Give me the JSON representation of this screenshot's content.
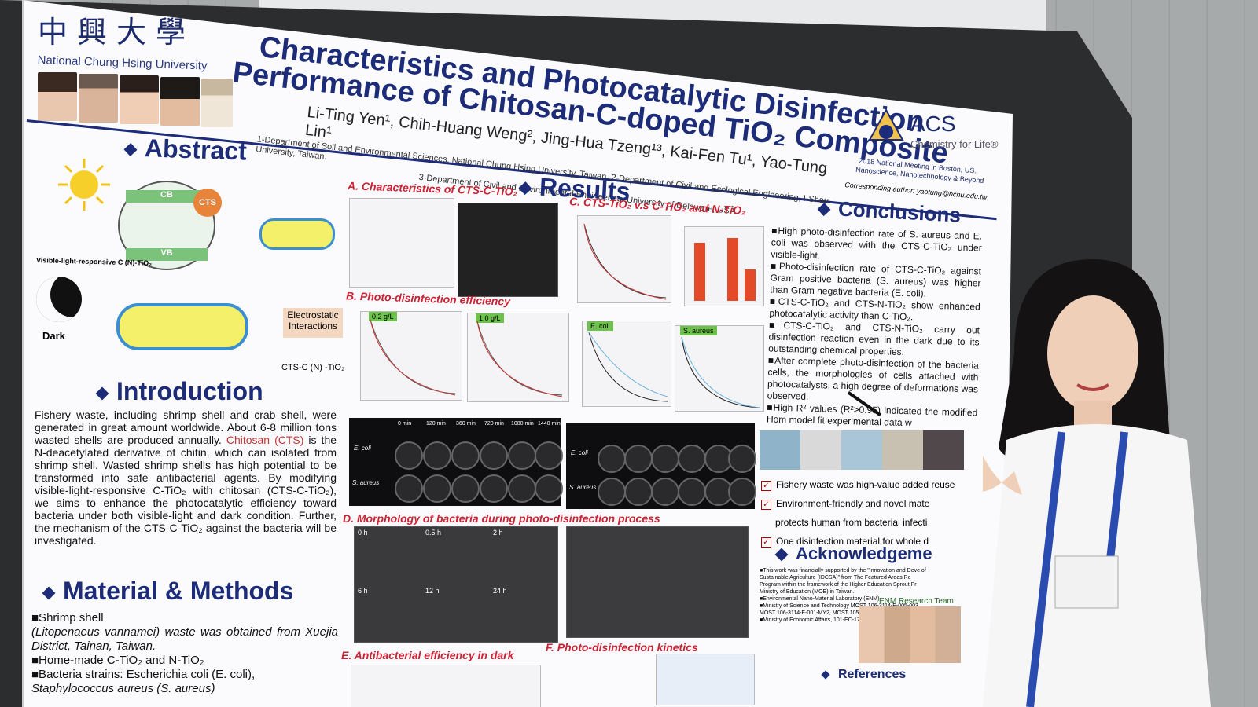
{
  "university": {
    "cn": "中興大學",
    "en": "National Chung Hsing University"
  },
  "poster": {
    "title_line1": "Characteristics and Photocatalytic Disinfection",
    "title_line2": "Performance of Chitosan-C-doped TiO₂ Composite",
    "authors": "Li-Ting Yen¹, Chih-Huang Weng², Jing-Hua Tzeng¹³, Kai-Fen Tu¹, Yao-Tung Lin¹",
    "affiliation1": "1-Department of Soil and Environmental Sciences, National Chung Hsing University, Taiwan. 2-Department of Civil and Ecological Engineering, I-Shou University, Taiwan.",
    "affiliation2": "3-Department of Civil and Environmental Engineering, University of Delaware, USA.",
    "acs_name": "ACS",
    "acs_tag": "Chemistry for Life®",
    "meeting": "2018 National Meeting in Boston, US.",
    "meeting2": "Nanoscience, Nanotechnology & Beyond",
    "corresponding": "Corresponding author: yaotung@nchu.edu.tw"
  },
  "abstract": {
    "title": "Abstract",
    "cb": "CB",
    "vb": "VB",
    "cts": "CTS",
    "vis_label": "Visible-light-responsive C (N)-TiO₂",
    "dark": "Dark",
    "electrostatic": "Electrostatic Interactions",
    "cts_c": "CTS-C (N) -TiO₂"
  },
  "introduction": {
    "title": "Introduction",
    "p1": "Fishery waste, including shrimp shell and crab shell, were generated in great amount worldwide. About 6-8 million tons wasted shells are produced annually.",
    "chitosan": "Chitosan (CTS)",
    "p2": " is the N-deacetylated derivative of chitin, which can isolated from shrimp shell. Wasted shrimp shells has high potential to be transformed into safe antibacterial agents. By modifying visible-light-responsive C-TiO₂ with chitosan (CTS-C-TiO₂), we aims to enhance the photocatalytic efficiency toward bacteria under both visible-light and dark condition. Further, the mechanism of the CTS-C-TiO₂ against the bacteria will be investigated."
  },
  "methods": {
    "title": "Material & Methods",
    "i1": "■Shrimp shell",
    "i1b": "(Litopenaeus vannamei) waste was obtained from Xuejia District, Tainan, Taiwan.",
    "i2": "■Home-made C-TiO₂ and N-TiO₂",
    "i3": "■Bacteria strains: Escherichia coli (E. coli),",
    "i4": "Staphylococcus aureus (S. aureus)"
  },
  "results": {
    "title": "Results",
    "a": "A. Characteristics of CTS-C-TiO₂",
    "b": "B. Photo-disinfection efficiency",
    "c": "C. CTS-TiO₂ v.s C-TiO₂ and N-TiO₂",
    "d": "D. Morphology of bacteria during photo-disinfection process",
    "e": "E. Antibacterial efficiency in dark",
    "f": "F. Photo-disinfection kinetics",
    "tag1": "0.2 g/L",
    "tag2": "1.0 g/L",
    "tag3": "E. coli",
    "tag4": "S. aureus",
    "times": [
      "0 min",
      "120 min",
      "360 min",
      "720 min",
      "1080 min",
      "1440 min"
    ],
    "rowlabels": [
      "E. coli",
      "S. aureus"
    ],
    "sem_times": [
      "0 h",
      "0.5 h",
      "2 h",
      "6 h",
      "12 h",
      "24 h"
    ]
  },
  "conclusions": {
    "title": "Conclusions",
    "c1": "■High photo-disinfection rate of S. aureus and E. coli was observed with the CTS-C-TiO₂ under visible-light.",
    "c2": "■Photo-disinfection rate of CTS-C-TiO₂ against Gram positive bacteria (S. aureus) was higher than Gram negative bacteria (E. coli).",
    "c3": "■CTS-C-TiO₂ and CTS-N-TiO₂ show enhanced photocatalytic activity than C-TiO₂.",
    "c4": "■CTS-C-TiO₂ and CTS-N-TiO₂ carry out disinfection reaction even in the dark due to its outstanding chemical properties.",
    "c5": "■After complete photo-disinfection of the bacteria cells, the morphologies of cells attached with photocatalysts, a high degree of deformations was observed.",
    "c6": "■High R² values (R²>0.95) indicated the modified Hom model fit experimental data w",
    "k1": "Fishery waste was high-value added reuse",
    "k2": "Environment-friendly and novel mate",
    "k3": "protects human from bacterial infecti",
    "k4": "One disinfection material for whole d"
  },
  "acknowledgement": {
    "title": "Acknowledgeme",
    "t1": "■This work was financially supported by the \"Innovation and Deve of Sustainable Agriculture (IDCSA)\" from The Featured Areas Re Program within the framework of the Higher Education Sprout Pr Ministry of Education (MOE) in Taiwan.",
    "t2": "■Environmental Nano-Material Laboratory (ENM)",
    "t3": "■Ministry of Science and Technology MOST 106-3114-E-005-003, MOST 106-3114-E-001-MY2, MOST 105-2221-E-005-009-MY3",
    "t4": "■Ministry of Economic Affairs, 101-EC-17-A-21-S1-229",
    "team": "ENM Research Team"
  },
  "references": {
    "title": "References"
  },
  "colors": {
    "title_navy": "#1d2c78",
    "accent_red": "#c33",
    "lanyard": "#2a4cb0"
  }
}
